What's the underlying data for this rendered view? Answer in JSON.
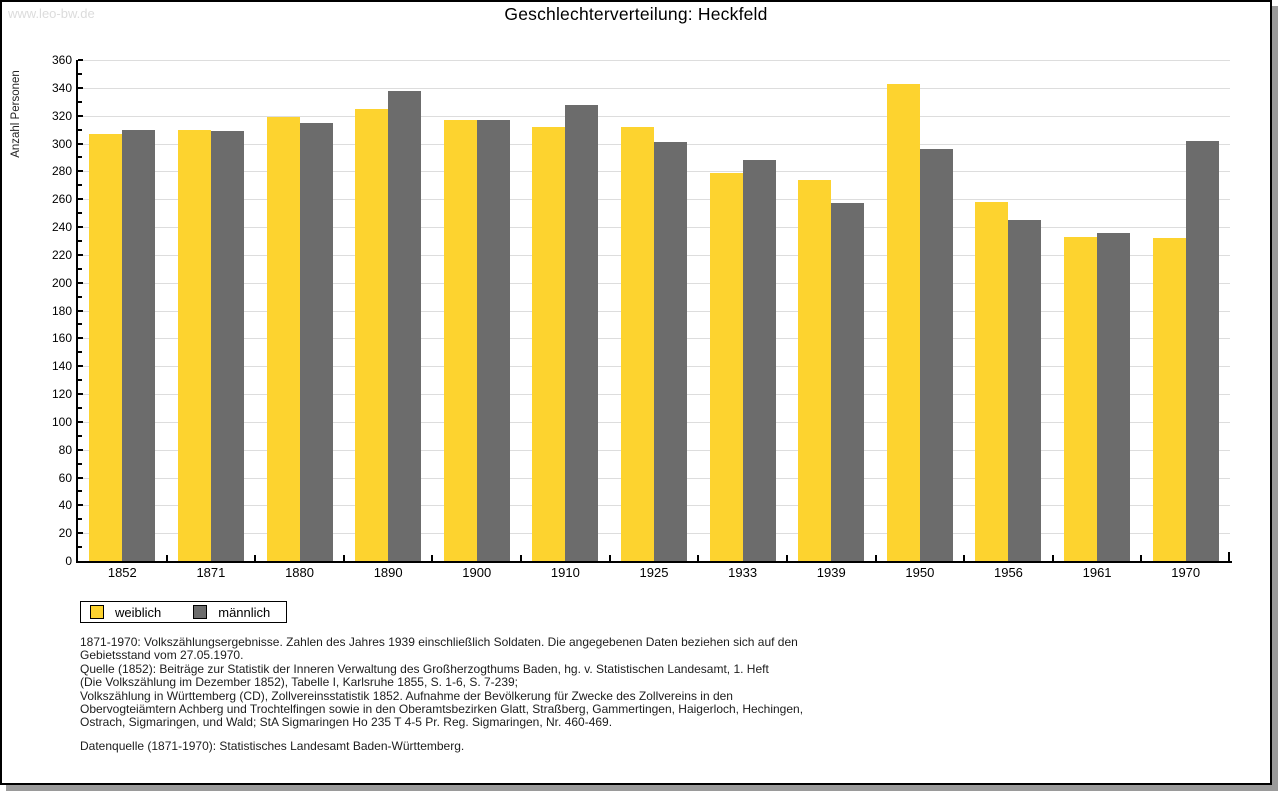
{
  "watermark": "www.leo-bw.de",
  "title": "Geschlechterverteilung: Heckfeld",
  "chart_data": {
    "type": "bar",
    "title": "Geschlechterverteilung: Heckfeld",
    "xlabel": "",
    "ylabel": "Anzahl Personen",
    "ylim": [
      0,
      360
    ],
    "ytick_step": 20,
    "ytick_minor_step": 10,
    "grid": true,
    "legend_position": "bottom-left",
    "categories": [
      "1852",
      "1871",
      "1880",
      "1890",
      "1900",
      "1910",
      "1925",
      "1933",
      "1939",
      "1950",
      "1956",
      "1961",
      "1970"
    ],
    "series": [
      {
        "name": "weiblich",
        "color": "#FDD32F",
        "values": [
          307,
          310,
          319,
          325,
          317,
          312,
          312,
          279,
          274,
          343,
          258,
          233,
          232
        ]
      },
      {
        "name": "männlich",
        "color": "#6C6C6C",
        "values": [
          310,
          309,
          315,
          338,
          317,
          328,
          301,
          288,
          257,
          296,
          245,
          236,
          302
        ]
      }
    ]
  },
  "legend": {
    "items": [
      {
        "label": "weiblich",
        "color": "#FDD32F"
      },
      {
        "label": "männlich",
        "color": "#6C6C6C"
      }
    ]
  },
  "footer": {
    "lines": [
      "1871-1970: Volkszählungsergebnisse. Zahlen des Jahres 1939 einschließlich Soldaten. Die angegebenen Daten beziehen sich auf den",
      "Gebietsstand vom 27.05.1970.",
      "Quelle (1852): Beiträge zur Statistik der Inneren Verwaltung des Großherzogthums Baden, hg. v. Statistischen Landesamt, 1. Heft",
      "(Die Volkszählung im Dezember 1852), Tabelle I, Karlsruhe 1855, S. 1-6, S. 7-239;",
      "Volkszählung in Württemberg (CD), Zollvereinsstatistik 1852. Aufnahme der Bevölkerung für Zwecke des Zollvereins in den",
      "Obervogteiämtern Achberg und Trochtelfingen sowie in den Oberamtsbezirken Glatt, Straßberg, Gammertingen, Haigerloch, Hechingen,",
      "Ostrach, Sigmaringen, und Wald; StA Sigmaringen Ho 235 T 4-5 Pr. Reg. Sigmaringen, Nr. 460-469."
    ],
    "datenquelle": "Datenquelle (1871-1970): Statistisches Landesamt Baden-Württemberg."
  },
  "colors": {
    "gridline": "#dddddd",
    "axis": "#000000",
    "watermark": "#dcdcdc",
    "shadow": "#9a9a9a"
  }
}
